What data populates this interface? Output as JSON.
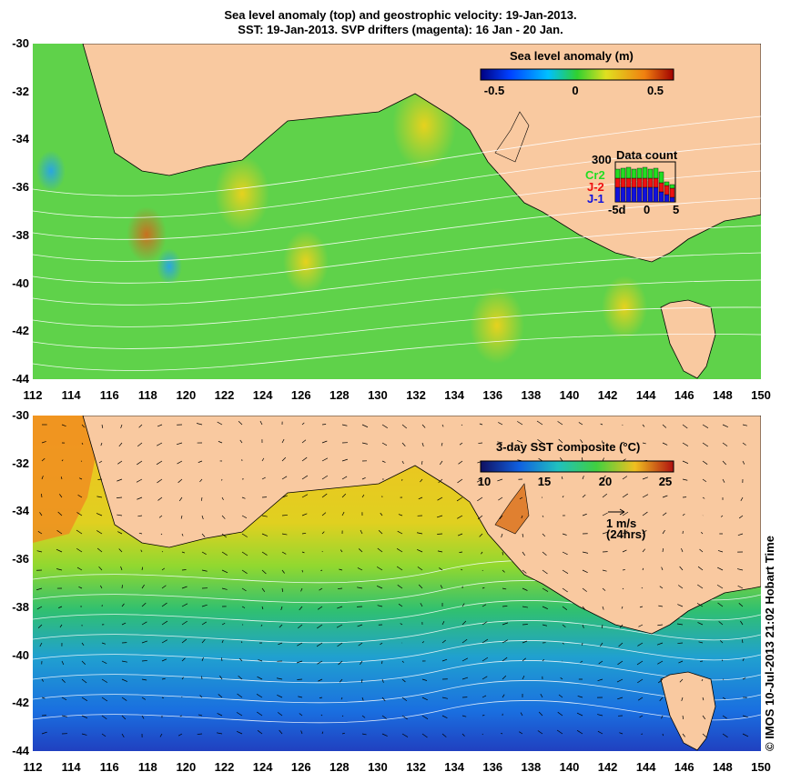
{
  "title": {
    "line1": "Sea level anomaly (top) and geostrophic velocity: 19-Jan-2013.",
    "line2": "SST: 19-Jan-2013. SVP drifters (magenta): 16 Jan - 20 Jan."
  },
  "axes": {
    "lat_labels": [
      "-30",
      "-32",
      "-34",
      "-36",
      "-38",
      "-40",
      "-42",
      "-44"
    ],
    "lon_labels": [
      "112",
      "114",
      "116",
      "118",
      "120",
      "122",
      "124",
      "126",
      "128",
      "130",
      "132",
      "134",
      "136",
      "138",
      "140",
      "142",
      "144",
      "146",
      "148",
      "150"
    ],
    "lat_range": [
      -44,
      -30
    ],
    "lon_range": [
      112,
      150
    ]
  },
  "top_panel": {
    "colorbar_title": "Sea level anomaly (m)",
    "colorbar_ticks": [
      "-0.5",
      "0",
      "0.5"
    ],
    "colorbar_range": [
      -0.6,
      0.6
    ],
    "data_count": {
      "title": "Data count",
      "max_label": "300",
      "satellites": [
        {
          "name": "Cr2",
          "color": "#22dd22"
        },
        {
          "name": "J-2",
          "color": "#ee1111"
        },
        {
          "name": "J-1",
          "color": "#1111dd"
        }
      ],
      "x_ticks": [
        "-5d",
        "0",
        "5"
      ]
    }
  },
  "bottom_panel": {
    "colorbar_title": "3-day SST composite (°C)",
    "colorbar_ticks": [
      "10",
      "15",
      "20",
      "25"
    ],
    "colorbar_range": [
      10,
      26
    ],
    "velocity_scale": {
      "label1": "1 m/s",
      "label2": "(24hrs)"
    }
  },
  "credit": "© IMOS 10-Jul-2013 21:02 Hobart Time",
  "colors": {
    "land": "#f9c9a0",
    "ocean_sla": "#5fd24a",
    "sst_warm": "#f2c020",
    "sst_cool": "#1a6fe0"
  }
}
